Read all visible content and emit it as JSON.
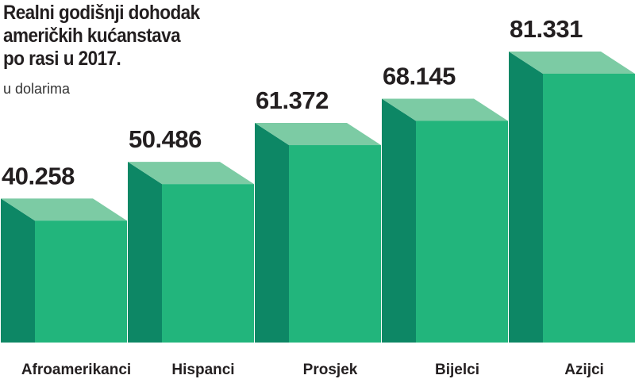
{
  "title_lines": [
    "Realni godišnji dohodak",
    "američkih kućanstava",
    "po rasi u 2017."
  ],
  "subtitle": "u dolarima",
  "colors": {
    "front": "#22b57c",
    "side": "#0d8765",
    "top": "#7ccba4",
    "text": "#231f20"
  },
  "chart_data": {
    "type": "bar",
    "title": "Realni godišnji dohodak američkih kućanstava po rasi u 2017.",
    "subtitle": "u dolarima",
    "categories": [
      "Afroamerikanci",
      "Hispanci",
      "Prosjek",
      "Bijelci",
      "Azijci"
    ],
    "values": [
      40258,
      50486,
      61372,
      68145,
      81331
    ],
    "value_labels": [
      "40.258",
      "50.486",
      "61.372",
      "68.145",
      "81.331"
    ],
    "style": "3d-bars"
  }
}
